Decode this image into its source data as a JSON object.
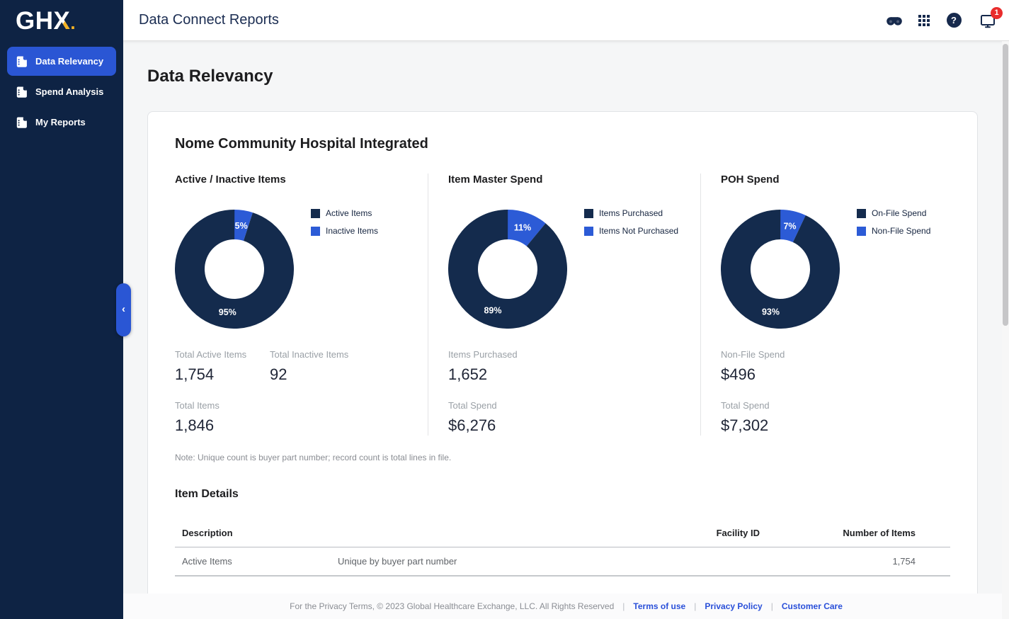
{
  "colors": {
    "sidebar_bg": "#0E2344",
    "accent_blue": "#2A56D4",
    "donut_navy": "#142B4D",
    "donut_blue": "#2C5BD6",
    "badge_red": "#E92C2C",
    "link_blue": "#2A50D9",
    "logo_yellow": "#F5B324"
  },
  "brand": {
    "logo_gh": "GH",
    "logo_x": "X",
    "logo_dot": "."
  },
  "topbar": {
    "title": "Data Connect Reports",
    "notification_count": "1",
    "icons": [
      "mask-icon",
      "apps-grid-icon",
      "help-icon",
      "monitor-notification-icon"
    ]
  },
  "sidebar": {
    "items": [
      {
        "label": "Data Relevancy",
        "active": true
      },
      {
        "label": "Spend Analysis",
        "active": false
      },
      {
        "label": "My Reports",
        "active": false
      }
    ],
    "collapse_chevron": "‹"
  },
  "page": {
    "title": "Data Relevancy"
  },
  "card": {
    "title": "Nome Community Hospital Integrated",
    "note": "Note: Unique count is buyer part number; record count is total lines in file.",
    "section_title": "Item Details"
  },
  "chart_data": [
    {
      "type": "donut",
      "title": "Active / Inactive Items",
      "segments": [
        {
          "label": "Active Items",
          "pct": 95,
          "color": "#142B4D"
        },
        {
          "label": "Inactive Items",
          "pct": 5,
          "color": "#2C5BD6"
        }
      ],
      "stats": {
        "row1": [
          {
            "label": "Total Active Items",
            "value": "1,754"
          },
          {
            "label": "Total Inactive Items",
            "value": "92"
          }
        ],
        "row2": [
          {
            "label": "Total Items",
            "value": "1,846"
          }
        ]
      }
    },
    {
      "type": "donut",
      "title": "Item Master Spend",
      "segments": [
        {
          "label": "Items Purchased",
          "pct": 89,
          "color": "#142B4D"
        },
        {
          "label": "Items Not Purchased",
          "pct": 11,
          "color": "#2C5BD6"
        }
      ],
      "stats": {
        "row1": [
          {
            "label": "Items Purchased",
            "value": "1,652"
          }
        ],
        "row2": [
          {
            "label": "Total Spend",
            "value": "$6,276"
          }
        ]
      }
    },
    {
      "type": "donut",
      "title": "POH Spend",
      "segments": [
        {
          "label": "On-File Spend",
          "pct": 93,
          "color": "#142B4D"
        },
        {
          "label": "Non-File Spend",
          "pct": 7,
          "color": "#2C5BD6"
        }
      ],
      "stats": {
        "row1": [
          {
            "label": "Non-File Spend",
            "value": "$496"
          }
        ],
        "row2": [
          {
            "label": "Total Spend",
            "value": "$7,302"
          }
        ]
      }
    }
  ],
  "table": {
    "headers": {
      "description": "Description",
      "detail": "",
      "facility_id": "Facility ID",
      "number_of_items": "Number of Items"
    },
    "rows": [
      {
        "description": "Active Items",
        "detail": "Unique by buyer part number",
        "facility_id": "",
        "number_of_items": "1,754"
      }
    ]
  },
  "footer": {
    "copyright": "For the Privacy Terms, © 2023 Global Healthcare Exchange, LLC. All Rights Reserved",
    "separator": "|",
    "links": [
      {
        "label": "Terms of use"
      },
      {
        "label": "Privacy Policy"
      },
      {
        "label": "Customer Care"
      }
    ]
  }
}
